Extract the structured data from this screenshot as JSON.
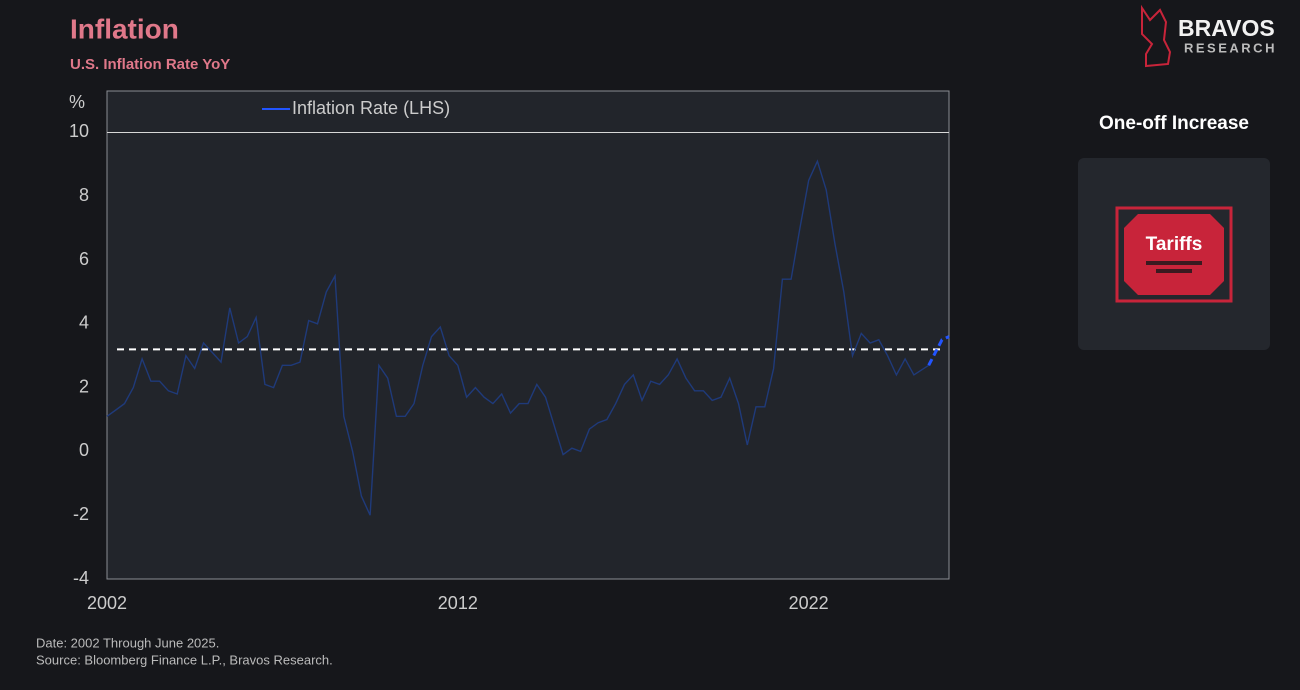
{
  "header": {
    "title": "Inflation",
    "subtitle": "U.S. Inflation Rate YoY"
  },
  "brand": {
    "name": "BRAVOS",
    "tagline": "RESEARCH"
  },
  "side_panel": {
    "heading": "One-off Increase",
    "label": "Tariffs"
  },
  "footer": {
    "date_note": "Date: 2002 Through June 2025.",
    "source": "Source: Bloomberg Finance L.P., Bravos Research."
  },
  "chart_data": {
    "type": "line",
    "y_unit": "%",
    "xlim": [
      2002,
      2026
    ],
    "xticks": [
      2002,
      2012,
      2022
    ],
    "ylim": [
      -4,
      11.3
    ],
    "yticks": [
      -4,
      -2,
      0,
      2,
      4,
      6,
      8,
      10
    ],
    "grid": false,
    "grid_lines": [
      10
    ],
    "reference_line": 3.2,
    "legend": "top-left",
    "series": [
      {
        "name": "Inflation Rate (LHS)",
        "color": "#1f3a7a",
        "x": [
          2002,
          2002.25,
          2002.5,
          2002.75,
          2003,
          2003.25,
          2003.5,
          2003.75,
          2004,
          2004.25,
          2004.5,
          2004.75,
          2005,
          2005.25,
          2005.5,
          2005.75,
          2006,
          2006.25,
          2006.5,
          2006.75,
          2007,
          2007.25,
          2007.5,
          2007.75,
          2008,
          2008.25,
          2008.5,
          2008.75,
          2009,
          2009.25,
          2009.5,
          2009.75,
          2010,
          2010.25,
          2010.5,
          2010.75,
          2011,
          2011.25,
          2011.5,
          2011.75,
          2012,
          2012.25,
          2012.5,
          2012.75,
          2013,
          2013.25,
          2013.5,
          2013.75,
          2014,
          2014.25,
          2014.5,
          2014.75,
          2015,
          2015.25,
          2015.5,
          2015.75,
          2016,
          2016.25,
          2016.5,
          2016.75,
          2017,
          2017.25,
          2017.5,
          2017.75,
          2018,
          2018.25,
          2018.5,
          2018.75,
          2019,
          2019.25,
          2019.5,
          2019.75,
          2020,
          2020.25,
          2020.5,
          2020.75,
          2021,
          2021.25,
          2021.5,
          2021.75,
          2022,
          2022.25,
          2022.5,
          2022.75,
          2023,
          2023.25,
          2023.5,
          2023.75,
          2024,
          2024.25,
          2024.5,
          2024.75,
          2025,
          2025.42
        ],
        "values": [
          1.1,
          1.3,
          1.5,
          2.0,
          2.9,
          2.2,
          2.2,
          1.9,
          1.8,
          3.0,
          2.6,
          3.4,
          3.1,
          2.8,
          4.5,
          3.4,
          3.6,
          4.2,
          2.1,
          2.0,
          2.7,
          2.7,
          2.8,
          4.1,
          4.0,
          5.0,
          5.5,
          1.1,
          0.0,
          -1.4,
          -2.0,
          2.7,
          2.3,
          1.1,
          1.1,
          1.5,
          2.7,
          3.6,
          3.9,
          3.0,
          2.7,
          1.7,
          2.0,
          1.7,
          1.5,
          1.8,
          1.2,
          1.5,
          1.5,
          2.1,
          1.7,
          0.8,
          -0.1,
          0.1,
          0.0,
          0.7,
          0.9,
          1.0,
          1.5,
          2.1,
          2.4,
          1.6,
          2.2,
          2.1,
          2.4,
          2.9,
          2.3,
          1.9,
          1.9,
          1.6,
          1.7,
          2.3,
          1.5,
          0.2,
          1.4,
          1.4,
          2.6,
          5.4,
          5.4,
          7.0,
          8.5,
          9.1,
          8.2,
          6.5,
          5.0,
          3.0,
          3.7,
          3.4,
          3.5,
          3.0,
          2.4,
          2.9,
          2.4,
          2.7
        ]
      },
      {
        "color": "#2255ff",
        "dashed": true,
        "x": [
          2025.42,
          2025.8,
          2026
        ],
        "values": [
          2.7,
          3.5,
          3.6
        ]
      }
    ]
  }
}
